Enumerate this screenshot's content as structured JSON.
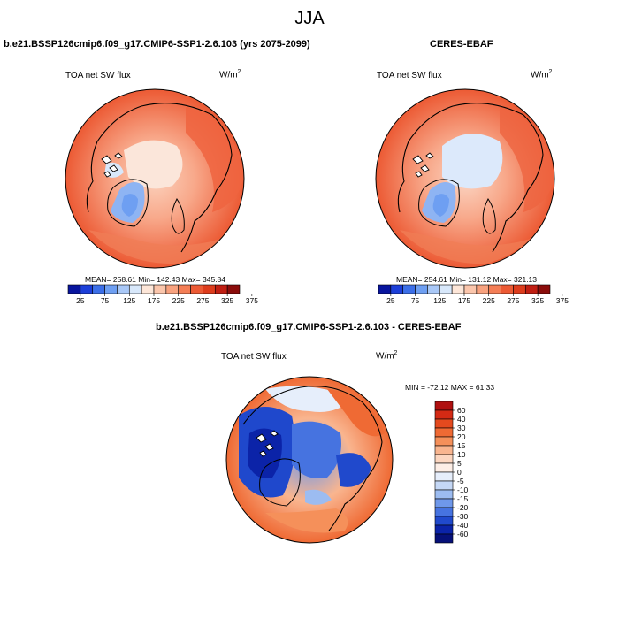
{
  "main_title": "JJA",
  "panels": [
    {
      "title": "b.e21.BSSP126cmip6.f09_g17.CMIP6-SSP1-2.6.103 (yrs 2075-2099)",
      "variable": "TOA net SW flux",
      "units": "W/m",
      "units_exp": "2",
      "stats": "MEAN= 258.61  Min= 142.43  Max= 345.84"
    },
    {
      "title": "CERES-EBAF",
      "variable": "TOA net SW flux",
      "units": "W/m",
      "units_exp": "2",
      "stats": "MEAN= 254.61  Min= 131.12  Max= 321.13"
    },
    {
      "title": "b.e21.BSSP126cmip6.f09_g17.CMIP6-SSP1-2.6.103 - CERES-EBAF",
      "variable": "TOA net SW flux",
      "units": "W/m",
      "units_exp": "2",
      "stats": "MIN = -72.12 MAX =  61.33"
    }
  ],
  "chart_data": [
    {
      "type": "heatmap",
      "projection": "north-polar-stereographic",
      "title": "b.e21.BSSP126cmip6.f09_g17.CMIP6-SSP1-2.6.103 (yrs 2075-2099)",
      "variable": "TOA net SW flux",
      "units": "W/m^2",
      "mean": 258.61,
      "min": 142.43,
      "max": 345.84,
      "colorbar": {
        "orientation": "horizontal",
        "tick_labels": [
          "25",
          "75",
          "125",
          "175",
          "225",
          "275",
          "325",
          "375"
        ],
        "colors": [
          "#08159e",
          "#1c3fd9",
          "#3c6fe8",
          "#6e9ff2",
          "#a9c8f7",
          "#d8e8fb",
          "#fde6d8",
          "#fbc6ac",
          "#f8a27f",
          "#f47e56",
          "#ec5a34",
          "#dd3c1c",
          "#c01e12",
          "#8b0d0b"
        ]
      }
    },
    {
      "type": "heatmap",
      "projection": "north-polar-stereographic",
      "title": "CERES-EBAF",
      "variable": "TOA net SW flux",
      "units": "W/m^2",
      "mean": 254.61,
      "min": 131.12,
      "max": 321.13,
      "colorbar": {
        "orientation": "horizontal",
        "tick_labels": [
          "25",
          "75",
          "125",
          "175",
          "225",
          "275",
          "325",
          "375"
        ],
        "colors": [
          "#08159e",
          "#1c3fd9",
          "#3c6fe8",
          "#6e9ff2",
          "#a9c8f7",
          "#d8e8fb",
          "#fde6d8",
          "#fbc6ac",
          "#f8a27f",
          "#f47e56",
          "#ec5a34",
          "#dd3c1c",
          "#c01e12",
          "#8b0d0b"
        ]
      }
    },
    {
      "type": "heatmap",
      "projection": "north-polar-stereographic",
      "title": "b.e21.BSSP126cmip6.f09_g17.CMIP6-SSP1-2.6.103 - CERES-EBAF",
      "variable": "TOA net SW flux",
      "units": "W/m^2",
      "min": -72.12,
      "max": 61.33,
      "colorbar": {
        "orientation": "vertical",
        "tick_labels": [
          "60",
          "40",
          "30",
          "20",
          "15",
          "10",
          "5",
          "0",
          "-5",
          "-10",
          "-15",
          "-20",
          "-30",
          "-40",
          "-60"
        ],
        "colors": [
          "#b01010",
          "#d42a14",
          "#e44a1e",
          "#ef6a34",
          "#f5905a",
          "#f9b58f",
          "#fcd6c0",
          "#fdeee6",
          "#e6eefb",
          "#c5d8f6",
          "#9cbcf1",
          "#6f98ea",
          "#4673e0",
          "#2049cc",
          "#0b23a8",
          "#061078"
        ]
      }
    }
  ]
}
